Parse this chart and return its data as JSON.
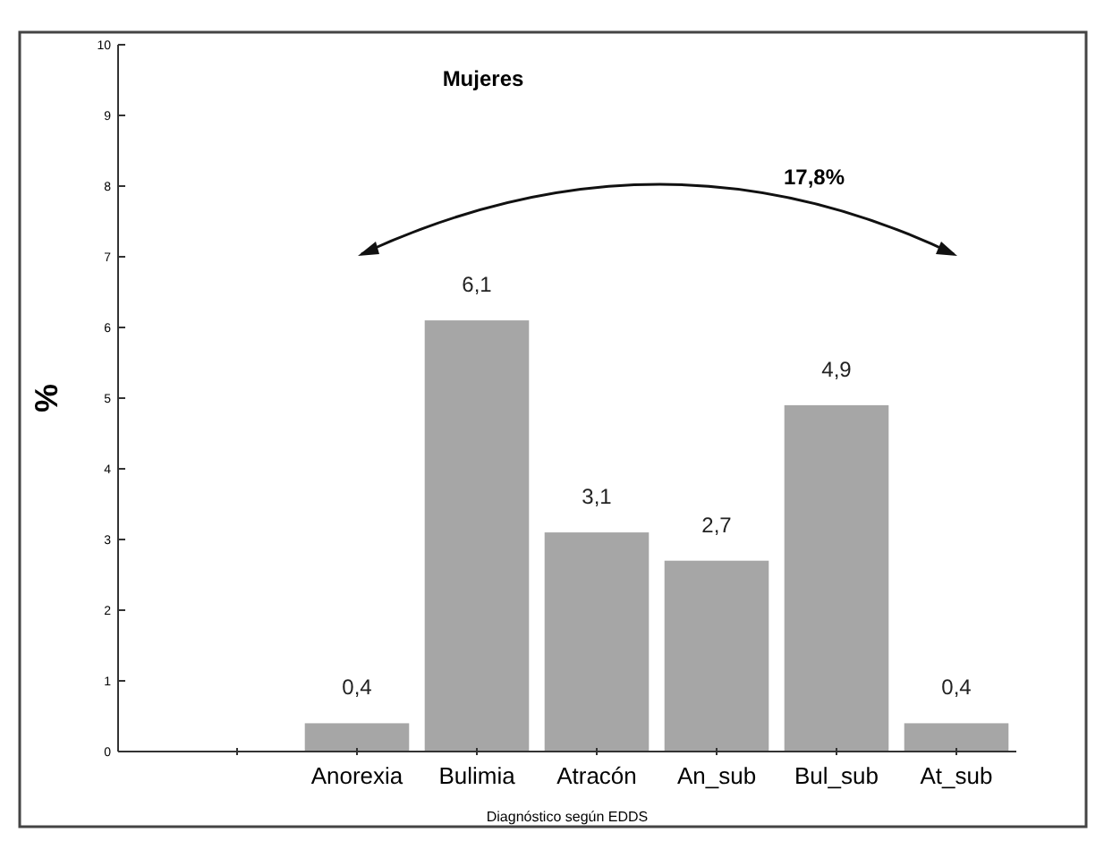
{
  "chart_data": {
    "type": "bar",
    "title": "Mujeres",
    "xlabel": "Diagnóstico según EDDS",
    "ylabel": "%",
    "categories": [
      null,
      "Anorexia",
      "Bulimia",
      "Atracón",
      "An_sub",
      "Bul_sub",
      "At_sub"
    ],
    "values": [
      null,
      0.4,
      6.1,
      3.1,
      2.7,
      4.9,
      0.4
    ],
    "value_labels": [
      null,
      "0,4",
      "6,1",
      "3,1",
      "2,7",
      "4,9",
      "0,4"
    ],
    "color": "#a6a6a6",
    "ylim": [
      0,
      10
    ],
    "yticks": [
      0,
      1,
      2,
      3,
      4,
      5,
      6,
      7,
      8,
      9,
      10
    ],
    "grid": false,
    "annotations": [
      "17,8%"
    ]
  }
}
